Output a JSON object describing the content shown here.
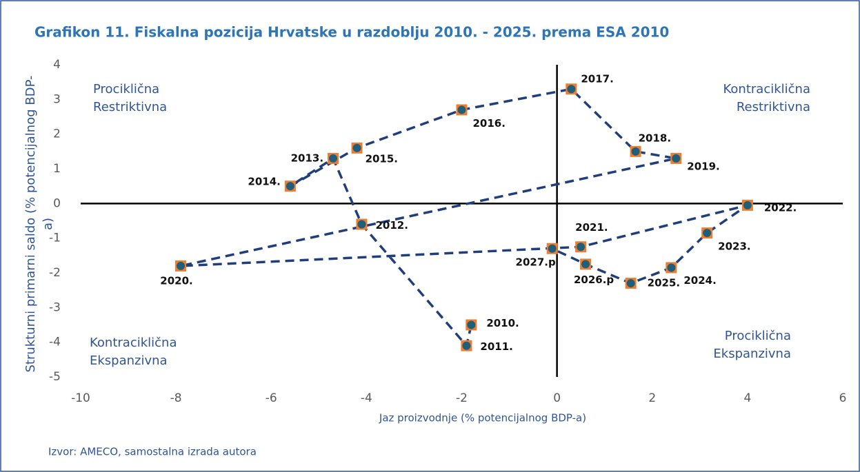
{
  "chart_data": {
    "type": "scatter",
    "title": "Grafikon 11. Fiskalna pozicija Hrvatske u razdoblju 2010. - 2025. prema ESA 2010",
    "xlabel": "Jaz proizvodnje (% potencijalnog BDP-a)",
    "ylabel": [
      "Strukturni primarni saldo (% potencijalnog BDP-",
      "a)"
    ],
    "source": "Izvor: AMECO, samostalna izrada autora",
    "annotations": [
      [
        "Prociklična",
        "Restriktivna"
      ],
      [
        "Kontraciklična",
        "Restriktivna"
      ],
      [
        "Kontraciklična",
        "Ekspanzivna"
      ],
      [
        "Prociklična",
        "Ekspanzivna"
      ]
    ],
    "labels": [
      "2010.",
      "2011.",
      "2012.",
      "2013.",
      "2014.",
      "2015.",
      "2016.",
      "2017.",
      "2018.",
      "2019.",
      "2020.",
      "2021.",
      "2022.",
      "2023.",
      "2024.",
      "2025.",
      "2026.p",
      "2027.p"
    ],
    "x": [
      -1.8,
      -1.9,
      -4.1,
      -4.7,
      -5.6,
      -4.2,
      -2.0,
      0.3,
      1.65,
      2.5,
      -7.9,
      0.5,
      4.0,
      3.15,
      2.4,
      1.55,
      0.6,
      -0.1
    ],
    "y": [
      -3.5,
      -4.1,
      -0.6,
      1.3,
      0.5,
      1.6,
      2.7,
      3.3,
      1.5,
      1.3,
      -1.8,
      -1.25,
      -0.05,
      -0.85,
      -1.85,
      -2.3,
      -1.75,
      -1.3
    ],
    "marker_color": "#ed7d31",
    "point_color": "#1f5f7a",
    "line_color": "#1f3e7a",
    "xlim": [
      -10,
      6
    ],
    "ylim": [
      -5,
      4
    ],
    "xticks": [
      -10,
      -8,
      -6,
      -4,
      -2,
      0,
      2,
      4,
      6
    ],
    "yticks": [
      -5,
      -4,
      -3,
      -2,
      -1,
      0,
      1,
      2,
      3,
      4
    ]
  }
}
